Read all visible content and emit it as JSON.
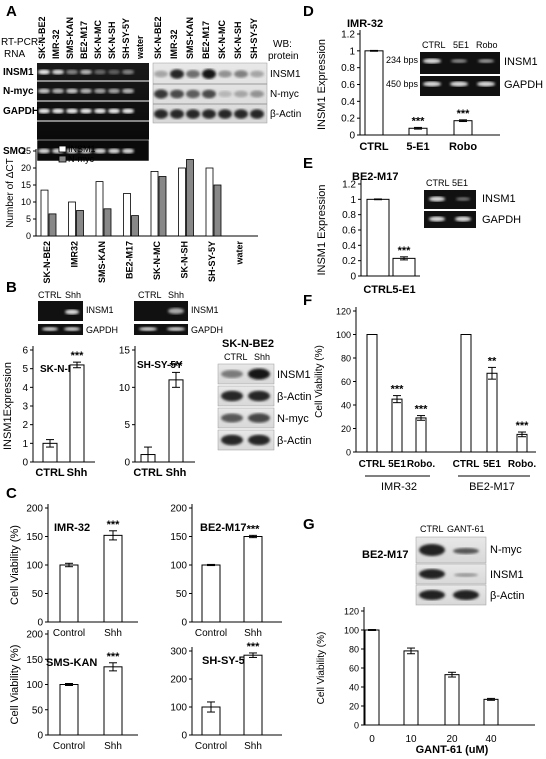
{
  "panels": {
    "A": "A",
    "B": "B",
    "C": "C",
    "D": "D",
    "E": "E",
    "F": "F",
    "G": "G"
  },
  "panelA": {
    "rt_pcr_label": [
      "RT-PCR:",
      "RNA"
    ],
    "wb_label": [
      "WB:",
      "protein"
    ],
    "lanes_rna": [
      "SK-N-BE2",
      "IMR-32",
      "SMS-KAN",
      "BE2-M17",
      "SK-N-MC",
      "SK-N-SH",
      "SH-SY-5Y",
      "water"
    ],
    "lanes_protein": [
      "SK-N-BE2",
      "IMR-32",
      "SMS-KAN",
      "BE2-M17",
      "SK-N-MC",
      "SK-N-SH",
      "SH-SY-5Y"
    ],
    "rna_rows": [
      "INSM1",
      "N-myc",
      "GAPDH",
      "SMO"
    ],
    "protein_rows": [
      "INSM1",
      "N-myc",
      "β-Actin"
    ]
  },
  "chart_data": [
    {
      "id": "A",
      "type": "bar",
      "categories": [
        "SK-N-BE2",
        "IMR32",
        "SMS-KAN",
        "BE2-M17",
        "SK-N-MC",
        "SK-N-SH",
        "SH-SY-5Y",
        "water"
      ],
      "series": [
        {
          "name": "INSM1",
          "values": [
            13.5,
            10,
            16,
            12.5,
            19,
            20,
            20,
            0
          ]
        },
        {
          "name": "N-myc",
          "values": [
            6.5,
            7.5,
            8,
            6,
            17.5,
            22.5,
            15,
            0
          ]
        }
      ],
      "ylabel": "Number of ΔCT",
      "ylim": [
        0,
        25
      ],
      "yticks": [
        0,
        5,
        10,
        15,
        20,
        25
      ],
      "legend": "top-left"
    },
    {
      "id": "B1",
      "type": "bar",
      "categories": [
        "CTRL",
        "Shh"
      ],
      "values": [
        1,
        5.2
      ],
      "errors": [
        0.2,
        0.15
      ],
      "annotations": [
        "",
        "***"
      ],
      "title": "SK-N-MC",
      "ylabel": "INSM1Expression",
      "ylim": [
        0,
        6
      ],
      "yticks": [
        0,
        1,
        2,
        3,
        4,
        5,
        6
      ]
    },
    {
      "id": "B2",
      "type": "bar",
      "categories": [
        "CTRL",
        "Shh"
      ],
      "values": [
        1,
        11
      ],
      "errors": [
        1,
        1
      ],
      "annotations": [
        "",
        "***"
      ],
      "title": "SH-SY-5Y",
      "ylim": [
        0,
        15
      ],
      "yticks": [
        0,
        5,
        10,
        15
      ]
    },
    {
      "id": "C1",
      "type": "bar",
      "categories": [
        "Control",
        "Shh"
      ],
      "values": [
        100,
        152
      ],
      "errors": [
        3,
        8
      ],
      "annotations": [
        "",
        "***"
      ],
      "title": "IMR-32",
      "ylabel": "Cell Viability (%)",
      "ylim": [
        0,
        200
      ],
      "yticks": [
        0,
        50,
        100,
        150,
        200
      ]
    },
    {
      "id": "C2",
      "type": "bar",
      "categories": [
        "Control",
        "Shh"
      ],
      "values": [
        100,
        150
      ],
      "errors": [
        1,
        2
      ],
      "annotations": [
        "",
        "***"
      ],
      "title": "BE2-M17",
      "ylim": [
        0,
        200
      ],
      "yticks": [
        0,
        50,
        100,
        150,
        200
      ]
    },
    {
      "id": "C3",
      "type": "bar",
      "categories": [
        "Control",
        "Shh"
      ],
      "values": [
        100,
        135
      ],
      "errors": [
        2,
        8
      ],
      "annotations": [
        "",
        "***"
      ],
      "title": "SMS-KAN",
      "ylabel": "Cell Viability (%)",
      "ylim": [
        0,
        200
      ],
      "yticks": [
        0,
        50,
        100,
        150,
        200
      ]
    },
    {
      "id": "C4",
      "type": "bar",
      "categories": [
        "Control",
        "Shh"
      ],
      "values": [
        100,
        285
      ],
      "errors": [
        18,
        8
      ],
      "annotations": [
        "",
        "***"
      ],
      "title": "SH-SY-5Y",
      "ylim": [
        0,
        300
      ],
      "yticks": [
        0,
        100,
        200,
        300
      ]
    },
    {
      "id": "D",
      "type": "bar",
      "categories": [
        "CTRL",
        "5-E1",
        "Robo"
      ],
      "values": [
        1,
        0.08,
        0.17
      ],
      "errors": [
        0.005,
        0.01,
        0.01
      ],
      "annotations": [
        "",
        "***",
        "***"
      ],
      "title": "IMR-32",
      "ylabel": "INSM1 Expression",
      "ylim": [
        0,
        1.2
      ],
      "yticks": [
        0,
        0.2,
        0.4,
        0.6,
        0.8,
        1,
        1.2
      ]
    },
    {
      "id": "E",
      "type": "bar",
      "categories": [
        "CTRL",
        "5-E1"
      ],
      "values": [
        1,
        0.23
      ],
      "errors": [
        0.005,
        0.02
      ],
      "annotations": [
        "",
        "***"
      ],
      "title": "BE2-M17",
      "ylabel": "INSM1 Expression",
      "ylim": [
        0,
        1.2
      ],
      "yticks": [
        0,
        0.2,
        0.4,
        0.6,
        0.8,
        1,
        1.2
      ]
    },
    {
      "id": "F",
      "type": "bar",
      "categories": [
        "CTRL",
        "5E1",
        "Robo.",
        "CTRL",
        "5E1",
        "Robo."
      ],
      "groups": [
        "IMR-32",
        "BE2-M17"
      ],
      "values": [
        100,
        45,
        29,
        100,
        67,
        15
      ],
      "errors": [
        0,
        3,
        2,
        0,
        5,
        2
      ],
      "annotations": [
        "",
        "***",
        "***",
        "",
        "**",
        "***"
      ],
      "ylabel": "Cell Viability (%)",
      "ylim": [
        0,
        120
      ],
      "yticks": [
        0,
        20,
        40,
        60,
        80,
        100,
        120
      ]
    },
    {
      "id": "G",
      "type": "bar",
      "categories": [
        "0",
        "10",
        "20",
        "40"
      ],
      "values": [
        100,
        78,
        53,
        27
      ],
      "errors": [
        0.5,
        3,
        2.5,
        1
      ],
      "xlabel": "GANT-61 (uM)",
      "ylabel": "Cell Viability (%)",
      "ylim": [
        0,
        120
      ],
      "yticks": [
        0,
        20,
        40,
        60,
        80,
        100,
        120
      ]
    }
  ],
  "panelB": {
    "blot_lanes": [
      "CTRL",
      "Shh"
    ],
    "rows": [
      "INSM1",
      "GAPDH"
    ],
    "wb_title": "SK-N-BE2",
    "wb_lanes": [
      "CTRL",
      "Shh"
    ],
    "wb_rows": [
      "INSM1",
      "β-Actin",
      "N-myc",
      "β-Actin"
    ]
  },
  "panelD": {
    "lanes": [
      "CTRL",
      "5E1",
      "Robo"
    ],
    "rows": [
      "INSM1",
      "GAPDH"
    ],
    "bps": [
      "234 bps",
      "450 bps"
    ]
  },
  "panelE": {
    "lanes": [
      "CTRL",
      "5E1"
    ],
    "rows": [
      "INSM1",
      "GAPDH"
    ]
  },
  "panelG": {
    "lanes": [
      "CTRL",
      "GANT-61"
    ],
    "cell": "BE2-M17",
    "rows": [
      "N-myc",
      "INSM1",
      "β-Actin"
    ]
  }
}
